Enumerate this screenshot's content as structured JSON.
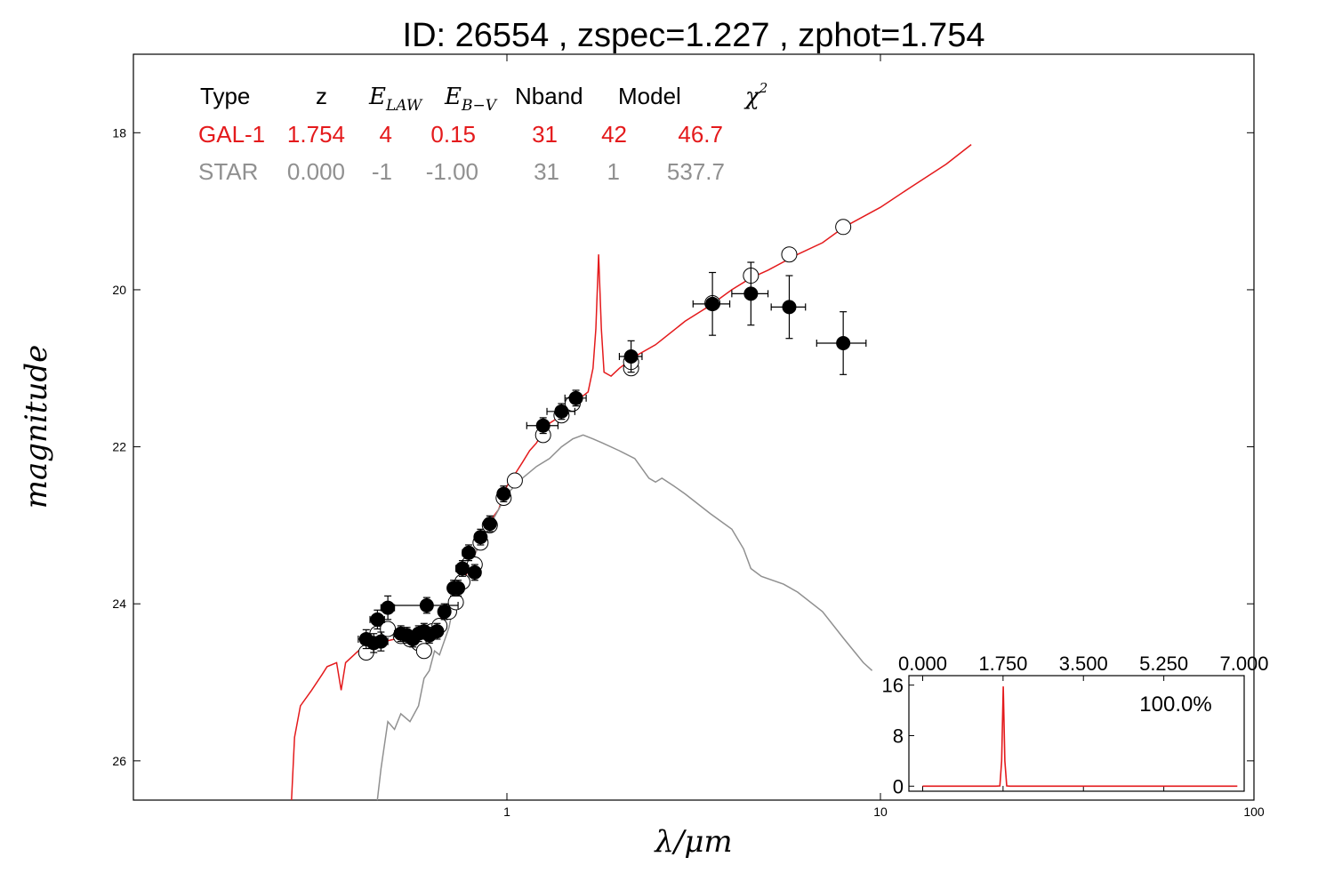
{
  "title": "ID:  26554 , zspec=1.227 , zphot=1.754",
  "colors": {
    "galaxy": "#e41a1c",
    "star": "#909090",
    "points": "#000000",
    "frame": "#000000"
  },
  "fit_table": {
    "headers": {
      "type": "Type",
      "z": "z",
      "elaw_base": "E",
      "elaw_sub": "LAW",
      "ebv_base": "E",
      "ebv_sub": "B−V",
      "nband": "Nband",
      "model": "Model",
      "chi_base": "χ",
      "chi_sup": "2"
    },
    "rows": [
      {
        "type": "GAL-1",
        "z": "1.754",
        "elaw": "4",
        "ebv": "0.15",
        "nband": "31",
        "model": "42",
        "chi2": "46.7"
      },
      {
        "type": "STAR",
        "z": "0.000",
        "elaw": "-1",
        "ebv": "-1.00",
        "nband": "31",
        "model": "1",
        "chi2": "537.7"
      }
    ]
  },
  "chart_data": [
    {
      "type": "line",
      "xlabel": "λ/μm",
      "ylabel": "magnitude",
      "x_scale": "log",
      "xlim": [
        0.1,
        100
      ],
      "ylim": [
        26.5,
        17.0
      ],
      "x_tick_labels": [
        "1",
        "10",
        "100"
      ],
      "x_ticks": [
        1,
        10,
        100
      ],
      "y_tick_labels": [
        "18",
        "20",
        "22",
        "24",
        "26"
      ],
      "y_ticks": [
        18,
        20,
        22,
        24,
        26
      ],
      "series": [
        {
          "kind": "galaxy_template",
          "points": [
            [
              0.265,
              26.5
            ],
            [
              0.27,
              25.7
            ],
            [
              0.28,
              25.3
            ],
            [
              0.3,
              25.1
            ],
            [
              0.32,
              24.9
            ],
            [
              0.33,
              24.8
            ],
            [
              0.35,
              24.75
            ],
            [
              0.36,
              25.1
            ],
            [
              0.37,
              24.75
            ],
            [
              0.4,
              24.6
            ],
            [
              0.45,
              24.5
            ],
            [
              0.5,
              24.45
            ],
            [
              0.55,
              24.4
            ],
            [
              0.6,
              24.35
            ],
            [
              0.65,
              24.25
            ],
            [
              0.7,
              24.05
            ],
            [
              0.75,
              23.8
            ],
            [
              0.8,
              23.5
            ],
            [
              0.85,
              23.2
            ],
            [
              0.9,
              22.95
            ],
            [
              0.95,
              22.8
            ],
            [
              1.0,
              22.5
            ],
            [
              1.05,
              22.35
            ],
            [
              1.1,
              22.2
            ],
            [
              1.15,
              22.05
            ],
            [
              1.2,
              21.95
            ],
            [
              1.25,
              21.8
            ],
            [
              1.3,
              21.7
            ],
            [
              1.35,
              21.65
            ],
            [
              1.4,
              21.55
            ],
            [
              1.45,
              21.5
            ],
            [
              1.5,
              21.45
            ],
            [
              1.6,
              21.35
            ],
            [
              1.65,
              21.3
            ],
            [
              1.7,
              21.0
            ],
            [
              1.73,
              20.5
            ],
            [
              1.76,
              19.55
            ],
            [
              1.79,
              20.5
            ],
            [
              1.82,
              21.05
            ],
            [
              1.9,
              21.1
            ],
            [
              2.0,
              21.0
            ],
            [
              2.2,
              20.85
            ],
            [
              2.5,
              20.7
            ],
            [
              3.0,
              20.4
            ],
            [
              3.5,
              20.2
            ],
            [
              4.0,
              20.0
            ],
            [
              4.5,
              19.85
            ],
            [
              5.0,
              19.75
            ],
            [
              6.0,
              19.55
            ],
            [
              7.0,
              19.4
            ],
            [
              8.0,
              19.2
            ],
            [
              10.0,
              18.95
            ],
            [
              12.0,
              18.7
            ],
            [
              15.0,
              18.4
            ],
            [
              17.5,
              18.15
            ]
          ]
        },
        {
          "kind": "star_template",
          "points": [
            [
              0.45,
              26.5
            ],
            [
              0.46,
              26.1
            ],
            [
              0.48,
              25.5
            ],
            [
              0.5,
              25.6
            ],
            [
              0.52,
              25.4
            ],
            [
              0.55,
              25.5
            ],
            [
              0.58,
              25.3
            ],
            [
              0.6,
              24.95
            ],
            [
              0.62,
              24.85
            ],
            [
              0.64,
              24.6
            ],
            [
              0.66,
              24.65
            ],
            [
              0.7,
              24.3
            ],
            [
              0.72,
              24.0
            ],
            [
              0.75,
              23.7
            ],
            [
              0.78,
              23.4
            ],
            [
              0.8,
              23.5
            ],
            [
              0.85,
              23.2
            ],
            [
              0.9,
              23.0
            ],
            [
              0.95,
              22.8
            ],
            [
              1.0,
              22.6
            ],
            [
              1.05,
              22.5
            ],
            [
              1.1,
              22.4
            ],
            [
              1.2,
              22.25
            ],
            [
              1.3,
              22.15
            ],
            [
              1.4,
              22.0
            ],
            [
              1.5,
              21.9
            ],
            [
              1.6,
              21.85
            ],
            [
              1.7,
              21.9
            ],
            [
              1.8,
              21.95
            ],
            [
              2.0,
              22.05
            ],
            [
              2.2,
              22.15
            ],
            [
              2.4,
              22.4
            ],
            [
              2.5,
              22.45
            ],
            [
              2.6,
              22.4
            ],
            [
              2.8,
              22.5
            ],
            [
              3.0,
              22.6
            ],
            [
              3.5,
              22.85
            ],
            [
              4.0,
              23.05
            ],
            [
              4.3,
              23.3
            ],
            [
              4.5,
              23.55
            ],
            [
              4.8,
              23.65
            ],
            [
              5.5,
              23.75
            ],
            [
              6.0,
              23.85
            ],
            [
              7.0,
              24.1
            ],
            [
              8.0,
              24.45
            ],
            [
              9.0,
              24.75
            ],
            [
              9.5,
              24.85
            ]
          ]
        }
      ],
      "model_points": [
        {
          "x": 0.42,
          "y": 24.62
        },
        {
          "x": 0.45,
          "y": 24.38
        },
        {
          "x": 0.48,
          "y": 24.32
        },
        {
          "x": 0.52,
          "y": 24.41
        },
        {
          "x": 0.55,
          "y": 24.45
        },
        {
          "x": 0.58,
          "y": 24.5
        },
        {
          "x": 0.6,
          "y": 24.6
        },
        {
          "x": 0.63,
          "y": 24.35
        },
        {
          "x": 0.66,
          "y": 24.28
        },
        {
          "x": 0.7,
          "y": 24.1
        },
        {
          "x": 0.73,
          "y": 23.98
        },
        {
          "x": 0.76,
          "y": 23.72
        },
        {
          "x": 0.79,
          "y": 23.5
        },
        {
          "x": 0.82,
          "y": 23.5
        },
        {
          "x": 0.85,
          "y": 23.22
        },
        {
          "x": 0.9,
          "y": 23.0
        },
        {
          "x": 0.98,
          "y": 22.65
        },
        {
          "x": 1.05,
          "y": 22.43
        },
        {
          "x": 1.25,
          "y": 21.85
        },
        {
          "x": 1.4,
          "y": 21.6
        },
        {
          "x": 1.5,
          "y": 21.45
        },
        {
          "x": 2.15,
          "y": 21.0
        },
        {
          "x": 2.15,
          "y": 20.92
        },
        {
          "x": 3.55,
          "y": 20.17
        },
        {
          "x": 4.5,
          "y": 19.82
        },
        {
          "x": 5.7,
          "y": 19.55
        },
        {
          "x": 7.95,
          "y": 19.2
        }
      ],
      "observed_points": [
        {
          "x": 0.42,
          "y": 24.45,
          "xerr": 0.02,
          "yerr": 0.12
        },
        {
          "x": 0.44,
          "y": 24.5,
          "xerr": 0.02,
          "yerr": 0.12
        },
        {
          "x": 0.45,
          "y": 24.2,
          "xerr": 0.02,
          "yerr": 0.12
        },
        {
          "x": 0.46,
          "y": 24.48,
          "xerr": 0.02,
          "yerr": 0.12
        },
        {
          "x": 0.48,
          "y": 24.05,
          "xerr": 0.02,
          "yerr": 0.15
        },
        {
          "x": 0.52,
          "y": 24.38,
          "xerr": 0.02,
          "yerr": 0.1
        },
        {
          "x": 0.54,
          "y": 24.4,
          "xerr": 0.02,
          "yerr": 0.1
        },
        {
          "x": 0.56,
          "y": 24.45,
          "xerr": 0.02,
          "yerr": 0.1
        },
        {
          "x": 0.58,
          "y": 24.38,
          "xerr": 0.02,
          "yerr": 0.1
        },
        {
          "x": 0.6,
          "y": 24.35,
          "xerr": 0.02,
          "yerr": 0.1
        },
        {
          "x": 0.62,
          "y": 24.4,
          "xerr": 0.02,
          "yerr": 0.1
        },
        {
          "x": 0.61,
          "y": 24.02,
          "xerr": 0.13,
          "yerr": 0.1
        },
        {
          "x": 0.65,
          "y": 24.35,
          "xerr": 0.02,
          "yerr": 0.1
        },
        {
          "x": 0.68,
          "y": 24.1,
          "xerr": 0.02,
          "yerr": 0.1
        },
        {
          "x": 0.72,
          "y": 23.8,
          "xerr": 0.02,
          "yerr": 0.1
        },
        {
          "x": 0.74,
          "y": 23.8,
          "xerr": 0.02,
          "yerr": 0.1
        },
        {
          "x": 0.76,
          "y": 23.55,
          "xerr": 0.03,
          "yerr": 0.1
        },
        {
          "x": 0.79,
          "y": 23.35,
          "xerr": 0.03,
          "yerr": 0.1
        },
        {
          "x": 0.82,
          "y": 23.6,
          "xerr": 0.03,
          "yerr": 0.1
        },
        {
          "x": 0.85,
          "y": 23.15,
          "xerr": 0.03,
          "yerr": 0.1
        },
        {
          "x": 0.9,
          "y": 22.98,
          "xerr": 0.03,
          "yerr": 0.1
        },
        {
          "x": 0.98,
          "y": 22.6,
          "xerr": 0.03,
          "yerr": 0.1
        },
        {
          "x": 1.25,
          "y": 21.73,
          "xerr": 0.12,
          "yerr": 0.1
        },
        {
          "x": 1.4,
          "y": 21.55,
          "xerr": 0.12,
          "yerr": 0.1
        },
        {
          "x": 1.53,
          "y": 21.38,
          "xerr": 0.1,
          "yerr": 0.1
        },
        {
          "x": 2.15,
          "y": 20.85,
          "xerr": 0.15,
          "yerr": 0.2
        },
        {
          "x": 3.55,
          "y": 20.18,
          "xerr": 0.4,
          "yerr": 0.4
        },
        {
          "x": 4.5,
          "y": 20.05,
          "xerr": 0.5,
          "yerr": 0.4
        },
        {
          "x": 5.7,
          "y": 20.22,
          "xerr": 0.6,
          "yerr": 0.4
        },
        {
          "x": 7.95,
          "y": 20.68,
          "xerr": 1.2,
          "yerr": 0.4
        }
      ]
    },
    {
      "type": "line",
      "panel": "inset",
      "xlim": [
        -0.3,
        7.0
      ],
      "ylim": [
        -0.8,
        17.5
      ],
      "x_tick_labels": [
        "0.000",
        "1.750",
        "3.500",
        "5.250",
        "7.000"
      ],
      "x_ticks": [
        0,
        1.75,
        3.5,
        5.25,
        7.0
      ],
      "y_tick_labels": [
        "0",
        "8",
        "16"
      ],
      "y_ticks": [
        0,
        8,
        16
      ],
      "annotation": "100.0%",
      "series": [
        {
          "kind": "pdz",
          "points": [
            [
              0.0,
              0.0
            ],
            [
              1.6,
              0.0
            ],
            [
              1.68,
              0.05
            ],
            [
              1.72,
              4.0
            ],
            [
              1.754,
              15.8
            ],
            [
              1.79,
              4.0
            ],
            [
              1.83,
              0.05
            ],
            [
              1.9,
              0.0
            ],
            [
              6.85,
              0.0
            ]
          ]
        }
      ]
    }
  ]
}
